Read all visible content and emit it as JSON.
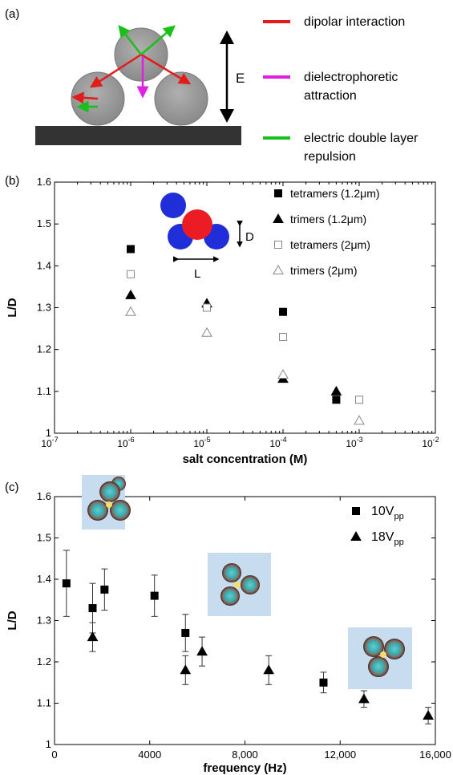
{
  "panel_a": {
    "label": "(a)",
    "field_label": "E",
    "legend": [
      {
        "text_lines": [
          "dipolar interaction"
        ],
        "color": "#e31b1b"
      },
      {
        "text_lines": [
          "dielectrophoretic",
          "attraction"
        ],
        "color": "#e020e0"
      },
      {
        "text_lines": [
          "electric double layer",
          "repulsion"
        ],
        "color": "#18c018"
      }
    ]
  },
  "panel_b_meta": {
    "label": "(b)",
    "inset": {
      "d_label": "D",
      "l_label": "L"
    },
    "xtick_labels": [
      {
        "base": "10",
        "exp": "-7"
      },
      {
        "base": "10",
        "exp": "-6"
      },
      {
        "base": "10",
        "exp": "-5"
      },
      {
        "base": "10",
        "exp": "-4"
      },
      {
        "base": "10",
        "exp": "-3"
      },
      {
        "base": "10",
        "exp": "-2"
      }
    ],
    "ytick_labels": [
      "1",
      "1.1",
      "1.2",
      "1.3",
      "1.4",
      "1.5",
      "1.6"
    ]
  },
  "panel_c_meta": {
    "label": "(c)",
    "xtick_labels": [
      "0",
      "4000",
      "8,000",
      "12,000",
      "16,000"
    ],
    "ytick_labels": [
      "1",
      "1.1",
      "1.2",
      "1.3",
      "1.4",
      "1.5",
      "1.6"
    ],
    "legend": [
      {
        "base": "10V",
        "sub": "pp"
      },
      {
        "base": "18V",
        "sub": "pp"
      }
    ]
  },
  "chart_data": [
    {
      "type": "scatter",
      "xscale": "log",
      "xlabel": "salt concentration (M)",
      "ylabel": "L/D",
      "xlim": [
        1e-07,
        0.01
      ],
      "ylim": [
        1.0,
        1.6
      ],
      "legend_position": "top-right",
      "series": [
        {
          "name": "tetramers (1.2μm)",
          "marker": "filled-square",
          "x": [
            1e-06,
            1e-05,
            0.0001,
            0.0005
          ],
          "y": [
            1.44,
            1.3,
            1.29,
            1.08
          ]
        },
        {
          "name": "trimers (1.2μm)",
          "marker": "filled-triangle",
          "x": [
            1e-06,
            1e-05,
            0.0001,
            0.0005
          ],
          "y": [
            1.33,
            1.31,
            1.13,
            1.1
          ]
        },
        {
          "name": "tetramers (2μm)",
          "marker": "open-square",
          "x": [
            1e-06,
            1e-05,
            0.0001,
            0.001
          ],
          "y": [
            1.38,
            1.3,
            1.23,
            1.08
          ]
        },
        {
          "name": "trimers (2μm)",
          "marker": "open-triangle",
          "x": [
            1e-06,
            1e-05,
            0.0001,
            0.001
          ],
          "y": [
            1.29,
            1.24,
            1.14,
            1.03
          ]
        }
      ]
    },
    {
      "type": "scatter",
      "xlabel": "frequency (Hz)",
      "ylabel": "L/D",
      "xlim": [
        0,
        16000
      ],
      "ylim": [
        1.0,
        1.6
      ],
      "legend_position": "top-right",
      "series": [
        {
          "name": "10Vpp",
          "marker": "filled-square",
          "x": [
            500,
            1600,
            2100,
            4200,
            5500,
            11300
          ],
          "y": [
            1.39,
            1.33,
            1.375,
            1.36,
            1.27,
            1.15
          ],
          "yerr": [
            0.08,
            0.06,
            0.05,
            0.05,
            0.045,
            0.025
          ]
        },
        {
          "name": "18Vpp",
          "marker": "filled-triangle",
          "x": [
            1600,
            5500,
            6200,
            9000,
            13000,
            15700
          ],
          "y": [
            1.26,
            1.18,
            1.225,
            1.18,
            1.11,
            1.07
          ],
          "yerr": [
            0.035,
            0.035,
            0.035,
            0.035,
            0.02,
            0.02
          ]
        }
      ]
    }
  ]
}
